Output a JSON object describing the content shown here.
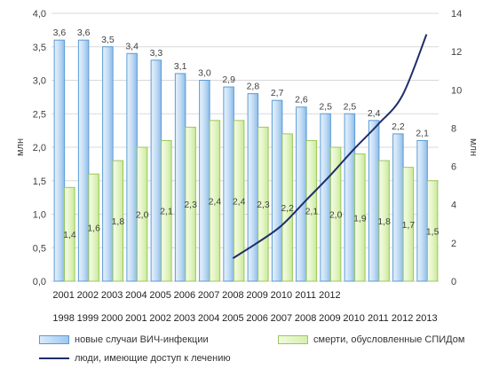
{
  "chart_data": {
    "type": "bar",
    "categories_row1": [
      "2001",
      "2002",
      "2003",
      "2004",
      "2005",
      "2006",
      "2007",
      "2008",
      "2009",
      "2010",
      "2011",
      "2012",
      "",
      "",
      "",
      ""
    ],
    "categories_row2": [
      "1998",
      "1999",
      "2000",
      "2001",
      "2002",
      "2003",
      "2004",
      "2005",
      "2006",
      "2007",
      "2008",
      "2009",
      "2010",
      "2011",
      "2012",
      "2013"
    ],
    "series": [
      {
        "name": "новые случаи ВИЧ-инфекции",
        "axis": "left",
        "values": [
          3.6,
          3.6,
          3.5,
          3.4,
          3.3,
          3.1,
          3.0,
          2.9,
          2.8,
          2.7,
          2.6,
          2.5,
          2.5,
          2.4,
          2.2,
          2.1
        ],
        "labels": [
          "3,6",
          "3,6",
          "3,5",
          "3,4",
          "3,3",
          "3,1",
          "3,0",
          "2,9",
          "2,8",
          "2,7",
          "2,6",
          "2,5",
          "2,5",
          "2,4",
          "2,2",
          "2,1"
        ],
        "color": "#5b9bd5"
      },
      {
        "name": "смерти, обусловленные СПИДом",
        "axis": "left",
        "values": [
          1.4,
          1.6,
          1.8,
          2.0,
          2.1,
          2.3,
          2.4,
          2.4,
          2.3,
          2.2,
          2.1,
          2.0,
          1.9,
          1.8,
          1.7,
          1.5
        ],
        "labels": [
          "1,4",
          "1,6",
          "1,8",
          "2,0",
          "2,1",
          "2,3",
          "2,4",
          "2,4",
          "2,3",
          "2,2",
          "2,1",
          "2,0",
          "1,9",
          "1,8",
          "1,7",
          "1,5"
        ],
        "color": "#9bc85c"
      },
      {
        "name": "люди, имеющие доступ к лечению",
        "axis": "right",
        "type": "line",
        "start_index": 7,
        "values": [
          1.2,
          2.0,
          2.9,
          4.2,
          5.5,
          6.9,
          8.2,
          9.7,
          12.9
        ],
        "color": "#1f2d6b"
      }
    ],
    "ylabel": "млн",
    "y2label": "млн",
    "ylim": [
      0,
      4
    ],
    "y2lim": [
      0,
      14
    ],
    "yticks": [
      "0,0",
      "0,5",
      "1,0",
      "1,5",
      "2,0",
      "2,5",
      "3,0",
      "3,5",
      "4,0"
    ],
    "y2ticks": [
      "0",
      "2",
      "4",
      "6",
      "8",
      "10",
      "12",
      "14"
    ],
    "grid": true,
    "legend_position": "bottom"
  },
  "legend": {
    "item1": "новые случаи ВИЧ-инфекции",
    "item2": "смерти, обусловленные СПИДом",
    "item3": "люди, имеющие доступ к лечению"
  }
}
